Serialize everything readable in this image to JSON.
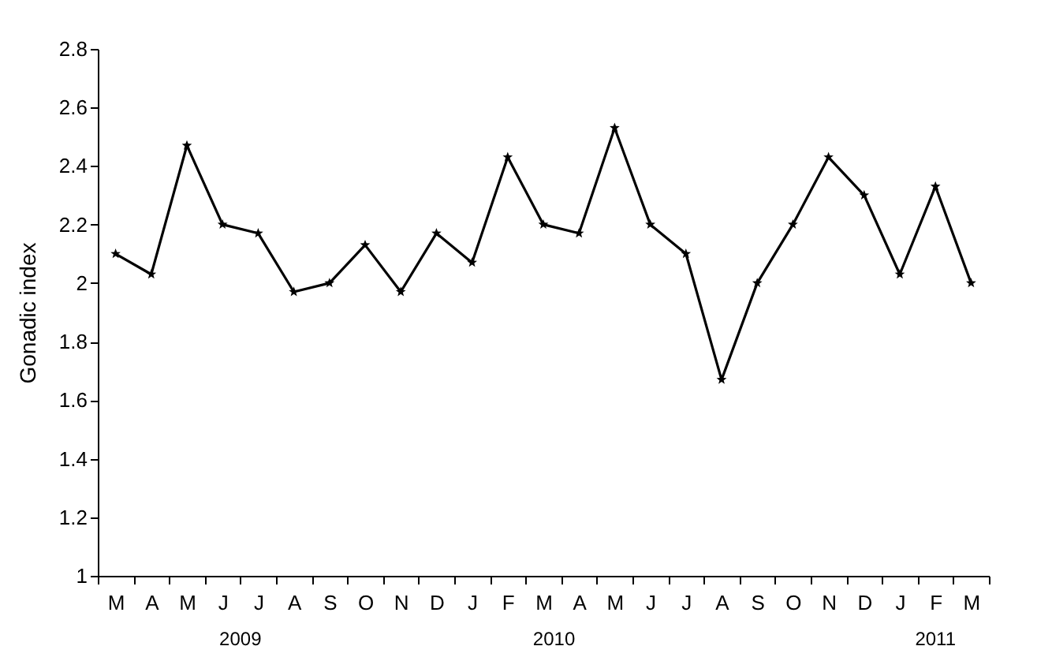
{
  "chart_data": {
    "type": "line",
    "ylabel": "Gonadic index",
    "categories": [
      "M",
      "A",
      "M",
      "J",
      "J",
      "A",
      "S",
      "O",
      "N",
      "D",
      "J",
      "F",
      "M",
      "A",
      "M",
      "J",
      "J",
      "A",
      "S",
      "O",
      "N",
      "D",
      "J",
      "F",
      "M"
    ],
    "series": [
      {
        "color": "#000000",
        "values": [
          2.1,
          2.03,
          2.47,
          2.2,
          2.17,
          1.97,
          2.0,
          2.13,
          1.97,
          2.17,
          2.07,
          2.43,
          2.2,
          2.17,
          2.53,
          2.2,
          2.1,
          1.67,
          2.0,
          2.2,
          2.43,
          2.3,
          2.03,
          2.33,
          2.0
        ]
      }
    ],
    "ylim": [
      1,
      2.8
    ],
    "yticks": [
      1,
      1.2,
      1.4,
      1.6,
      1.8,
      2,
      2.2,
      2.4,
      2.6,
      2.8
    ],
    "annotations": [
      "2009",
      "2010",
      "2011"
    ],
    "marker": "star",
    "line_style": "solid",
    "grid": false
  }
}
